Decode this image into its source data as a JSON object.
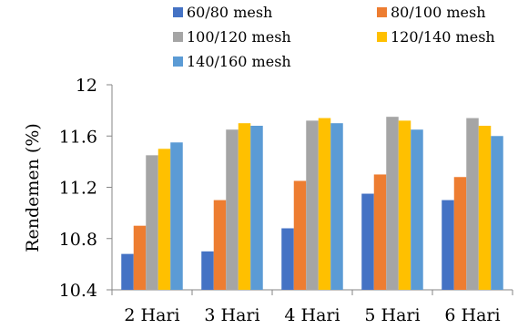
{
  "chart_data": {
    "type": "bar",
    "title": "",
    "xlabel": "",
    "ylabel": "Rendemen (%)",
    "ylim": [
      10.4,
      12
    ],
    "yticks": [
      "10.4",
      "10.8",
      "11.2",
      "11.6",
      "12"
    ],
    "grid": false,
    "legend_position": "top",
    "categories": [
      "2 Hari",
      "3 Hari",
      "4 Hari",
      "5 Hari",
      "6 Hari"
    ],
    "series": [
      {
        "name": "60/80 mesh",
        "color": "#4472C4",
        "values": [
          10.68,
          10.7,
          10.88,
          11.15,
          11.1
        ]
      },
      {
        "name": "80/100 mesh",
        "color": "#ED7D31",
        "values": [
          10.9,
          11.1,
          11.25,
          11.3,
          11.28
        ]
      },
      {
        "name": "100/120 mesh",
        "color": "#A5A5A5",
        "values": [
          11.45,
          11.65,
          11.72,
          11.75,
          11.74
        ]
      },
      {
        "name": "120/140 mesh",
        "color": "#FFC000",
        "values": [
          11.5,
          11.7,
          11.74,
          11.72,
          11.68
        ]
      },
      {
        "name": "140/160 mesh",
        "color": "#5B9BD5",
        "values": [
          11.55,
          11.68,
          11.7,
          11.65,
          11.6
        ]
      }
    ]
  }
}
